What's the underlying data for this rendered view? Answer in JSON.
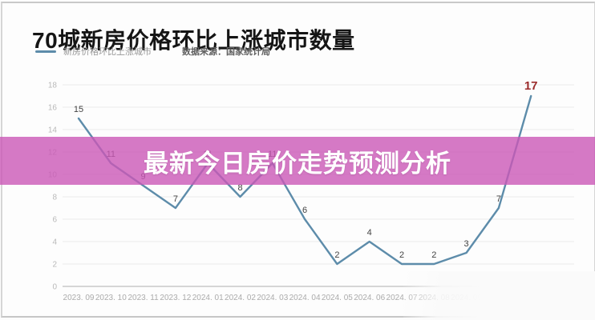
{
  "header": {
    "title": "70城新房价格环比上涨城市数量",
    "legend_label": "新房价格环比上涨城市",
    "source_label": "数据来源：国家统计局"
  },
  "banner": {
    "text": "最新今日房价走势预测分析",
    "color": "#cb57b6",
    "opacity": 0.8
  },
  "colors": {
    "line": "#5d8caa",
    "highlight": "#9b2b2b",
    "gridline": "#ebebeb",
    "axis_line": "#c9c9c9",
    "axis_text": "#ababab",
    "ytick_text": "#b9b9b9",
    "data_label": "#434343"
  },
  "chart_data": {
    "type": "line",
    "title": "70城新房价格环比上涨城市数量",
    "categories": [
      "2023. 09",
      "2023. 10",
      "2023. 11",
      "2023. 12",
      "2024. 01",
      "2024. 02",
      "2024. 03",
      "2024. 04",
      "2024. 05",
      "2024. 06",
      "2024. 07",
      "2024. 08",
      "2024. 09",
      "2024. 10",
      "2024. 11"
    ],
    "series": [
      {
        "name": "新房价格环比上涨城市",
        "values": [
          15,
          11,
          9,
          7,
          11,
          8,
          11,
          6,
          2,
          4,
          2,
          2,
          3,
          7,
          17
        ]
      }
    ],
    "xlabel": "",
    "ylabel": "",
    "ylim": [
      0,
      18
    ],
    "ytick_step": 2,
    "grid": true,
    "legend_position": "top-left",
    "line_color": "#5d8caa",
    "last_point_color": "#9b2b2b",
    "last_point_label": "17"
  }
}
